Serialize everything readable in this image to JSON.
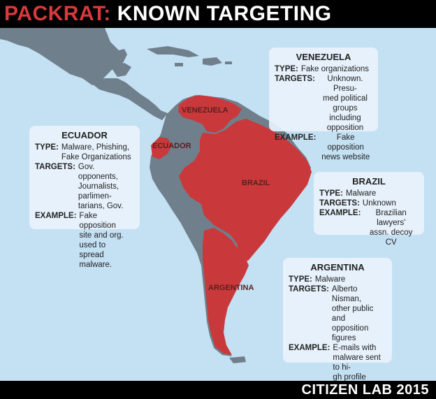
{
  "header": {
    "title_brand": "PACKRAT:",
    "title_rest": "KNOWN TARGETING"
  },
  "footer": {
    "credit": "CITIZEN LAB 2015"
  },
  "colors": {
    "targeted_country": "#c9393b",
    "other_land": "#6f7f8c",
    "ocean": "#c4e0f3",
    "brand_red": "#d63a3a"
  },
  "map_labels": {
    "venezuela": "VENEZUELA",
    "ecuador": "ECUADOR",
    "brazil": "BRAZIL",
    "argentina": "ARGENTINA"
  },
  "cards": {
    "venezuela": {
      "name": "VENEZUELA",
      "type_label": "TYPE:",
      "type": "Fake organizations",
      "targets_label": "TARGETS:",
      "targets": "Unknown. Presu-\nmed political groups\nincluding opposition",
      "example_label": "EXAMPLE:",
      "example": "Fake opposition\nnews website"
    },
    "ecuador": {
      "name": "ECUADOR",
      "type_label": "TYPE:",
      "type": "Malware, Phishing,\nFake Organizations",
      "targets_label": "TARGETS:",
      "targets": "Gov. opponents,\nJournalists, parlimen-\ntarians, Gov.",
      "example_label": "EXAMPLE:",
      "example": "Fake opposition\nsite and org. used to\nspread malware."
    },
    "brazil": {
      "name": "BRAZIL",
      "type_label": "TYPE:",
      "type": "Malware",
      "targets_label": "TARGETS:",
      "targets": "Unknown",
      "example_label": "EXAMPLE:",
      "example": "Brazilian lawyers'\nassn. decoy CV"
    },
    "argentina": {
      "name": "ARGENTINA",
      "type_label": "TYPE:",
      "type": "Malware",
      "targets_label": "TARGETS:",
      "targets": "Alberto Nisman,\nother public and\nopposition figures",
      "example_label": "EXAMPLE:",
      "example": "E-mails with\nmalware sent to hi-\ngh profile political\nfigures."
    }
  }
}
